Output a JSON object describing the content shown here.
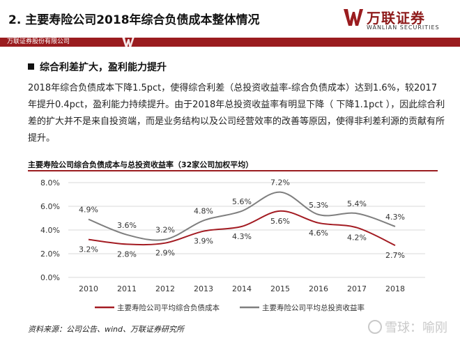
{
  "header": {
    "title": "2.  主要寿险公司2018年综合负债成本整体情况",
    "logo_cn": "万联证券",
    "logo_en": "WANLIAN SECURITIES",
    "banner_text": "万联证券股份有限公司"
  },
  "section": {
    "heading": "综合利差扩大，盈利能力提升",
    "paragraph": "2018年综合负债成本下降1.5pct，使得综合利差（总投资收益率-综合负债成本）达到1.6%，较2017年提升0.4pct，盈利能力持续提升。由于2018年总投资收益率有明显下降（ 下降1.1pct ），因此综合利差的扩大并不是来自投资端，而是业务结构以及公司经营效率的改善等原因，使得非利差利源的贡献有所提升。"
  },
  "colors": {
    "brand": "#9a1c1f",
    "series_cost": "#a31b22",
    "series_yield": "#7f7f7f"
  },
  "chart_data": {
    "type": "line",
    "title": "主要寿险公司综合负债成本与总投资收益率（32家公司加权平均）",
    "categories": [
      "2010",
      "2011",
      "2012",
      "2013",
      "2014",
      "2015",
      "2016",
      "2017",
      "2018"
    ],
    "ylim": [
      0,
      8
    ],
    "yticks": [
      "0.0%",
      "2.0%",
      "4.0%",
      "6.0%",
      "8.0%"
    ],
    "grid": true,
    "legend": "bottom",
    "series": [
      {
        "name": "主要寿险公司平均综合负债成本",
        "values": [
          3.2,
          2.8,
          2.9,
          3.9,
          4.3,
          5.6,
          4.6,
          4.2,
          2.7
        ],
        "labels": [
          "3.2%",
          "2.8%",
          "2.9%",
          "3.9%",
          "4.3%",
          "5.6%",
          "4.6%",
          "4.2%",
          "2.7%"
        ]
      },
      {
        "name": "主要寿险公司平均总投资收益率",
        "values": [
          4.9,
          3.6,
          3.2,
          4.8,
          5.6,
          7.2,
          5.3,
          5.4,
          4.3
        ],
        "labels": [
          "4.9%",
          "3.6%",
          "3.2%",
          "4.8%",
          "5.6%",
          "7.2%",
          "5.3%",
          "5.4%",
          "4.3%"
        ]
      }
    ]
  },
  "footer": {
    "source": "资料来源：公司公告、wind、万联证券研究所",
    "watermark": "雪球：喻刚"
  }
}
